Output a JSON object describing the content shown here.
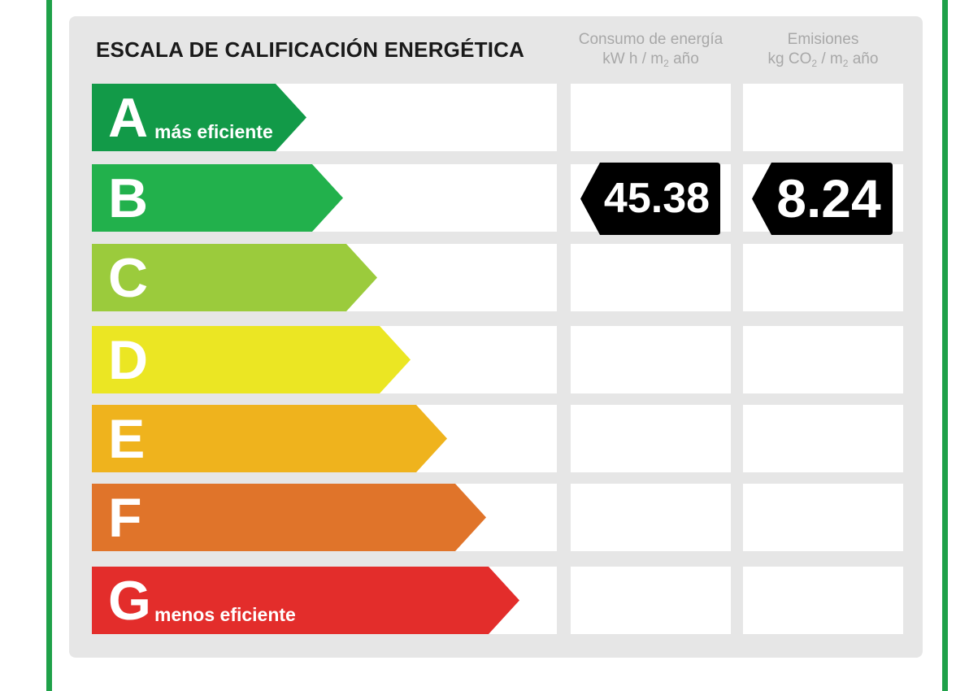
{
  "title": "ESCALA DE CALIFICACIÓN ENERGÉTICA",
  "columns": {
    "consumo": {
      "line1": "Consumo de energía",
      "line2_pre": "kW h / m",
      "line2_sub": "2",
      "line2_post": " año"
    },
    "emisiones": {
      "line1": "Emisiones",
      "line2_pre": "kg CO",
      "line2_sub1": "2",
      "line2_mid": " / m",
      "line2_sub2": "2",
      "line2_post": " año"
    }
  },
  "ratings": [
    {
      "letter": "A",
      "label": "más eficiente",
      "color": "#129a48"
    },
    {
      "letter": "B",
      "label": "",
      "color": "#22b14c"
    },
    {
      "letter": "C",
      "label": "",
      "color": "#9bcb3c"
    },
    {
      "letter": "D",
      "label": "",
      "color": "#ebe623"
    },
    {
      "letter": "E",
      "label": "",
      "color": "#efb31d"
    },
    {
      "letter": "F",
      "label": "",
      "color": "#e0742a"
    },
    {
      "letter": "G",
      "label": "menos eficiente",
      "color": "#e32d2b"
    }
  ],
  "result": {
    "rating": "B",
    "consumo_value": "45.38",
    "emisiones_value": "8.24",
    "badge_color": "#000000"
  },
  "frame_color": "#1fa149"
}
